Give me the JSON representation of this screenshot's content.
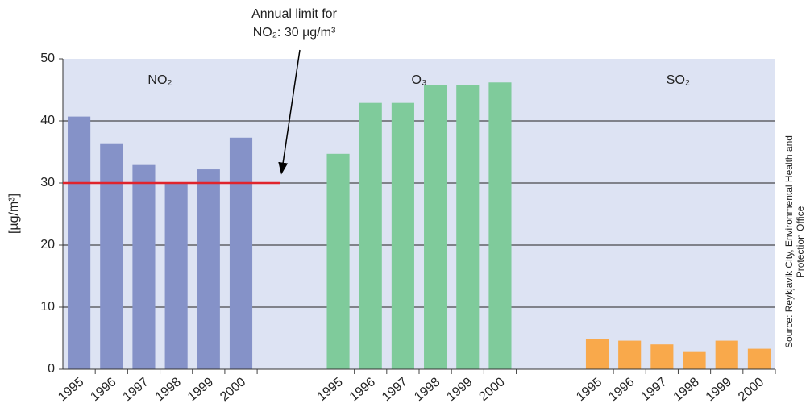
{
  "chart_data": {
    "type": "bar",
    "categories": [
      "1995",
      "1996",
      "1997",
      "1998",
      "1999",
      "2000"
    ],
    "series": [
      {
        "name": "NO₂",
        "color": "#8592c8",
        "values": [
          40.7,
          36.4,
          32.9,
          30.1,
          32.2,
          37.3
        ]
      },
      {
        "name": "O₃",
        "color": "#7fcb9b",
        "values": [
          34.7,
          42.9,
          42.9,
          45.8,
          45.8,
          46.2
        ]
      },
      {
        "name": "SO₂",
        "color": "#f9a94b",
        "values": [
          4.9,
          4.6,
          4.0,
          2.9,
          4.6,
          3.3
        ]
      }
    ],
    "ylabel": "[µg/m³]",
    "ylim": [
      0,
      50
    ],
    "yticks": [
      0,
      10,
      20,
      30,
      40,
      50
    ],
    "grid": true,
    "limit": 30,
    "limit_color": "#e0242c",
    "annotation": [
      "Annual limit for",
      "NO₂: 30 µg/m³"
    ],
    "source": [
      "Source: Reykjavik City, Environmental Health and",
      "Protection Office"
    ]
  }
}
